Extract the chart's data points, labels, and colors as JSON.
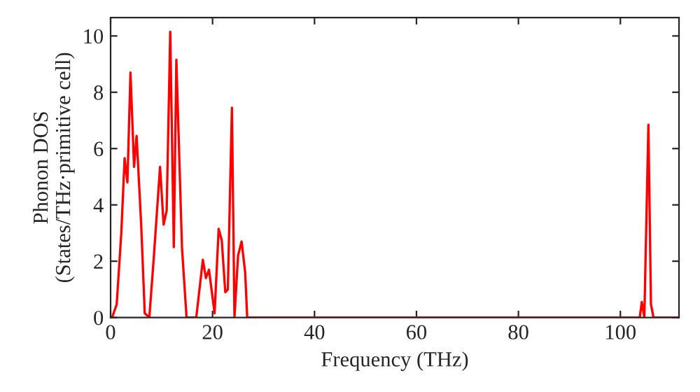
{
  "chart_data": {
    "type": "line",
    "xlabel": "Frequency (THz)",
    "ylabel": "Phonon DOS\n(States/THz·primitive cell)",
    "x": [
      0,
      0.3,
      1.2,
      2.1,
      2.75,
      3.3,
      3.9,
      4.6,
      5.1,
      6.0,
      6.7,
      7.6,
      8.5,
      9.7,
      10.4,
      11.0,
      11.7,
      12.4,
      12.9,
      14.0,
      14.9,
      16.8,
      18.1,
      18.7,
      19.3,
      20.4,
      21.2,
      21.8,
      22.5,
      23.0,
      23.8,
      24.3,
      25.0,
      25.7,
      26.4,
      26.8,
      60,
      103.8,
      104.2,
      104.7,
      105.5,
      106.0,
      106.5,
      111.5
    ],
    "series": [
      {
        "color": "#ff0000",
        "values": [
          0,
          0,
          0.47,
          3.0,
          5.66,
          4.8,
          8.7,
          5.35,
          6.45,
          3.3,
          0.15,
          0,
          2.2,
          5.35,
          3.3,
          3.8,
          10.15,
          2.5,
          9.15,
          2.5,
          0,
          0,
          2.05,
          1.4,
          1.7,
          0.15,
          3.15,
          2.75,
          0.9,
          1.0,
          7.45,
          0,
          2.2,
          2.7,
          1.6,
          0,
          0,
          0,
          0.55,
          0,
          6.85,
          0.47,
          0,
          0
        ]
      }
    ],
    "xlim": [
      0,
      111.5
    ],
    "ylim": [
      0,
      10.65
    ],
    "xticks": [
      0,
      20,
      40,
      60,
      80,
      100
    ],
    "yticks": [
      0,
      2,
      4,
      6,
      8,
      10
    ],
    "grid": false,
    "legend": false
  }
}
